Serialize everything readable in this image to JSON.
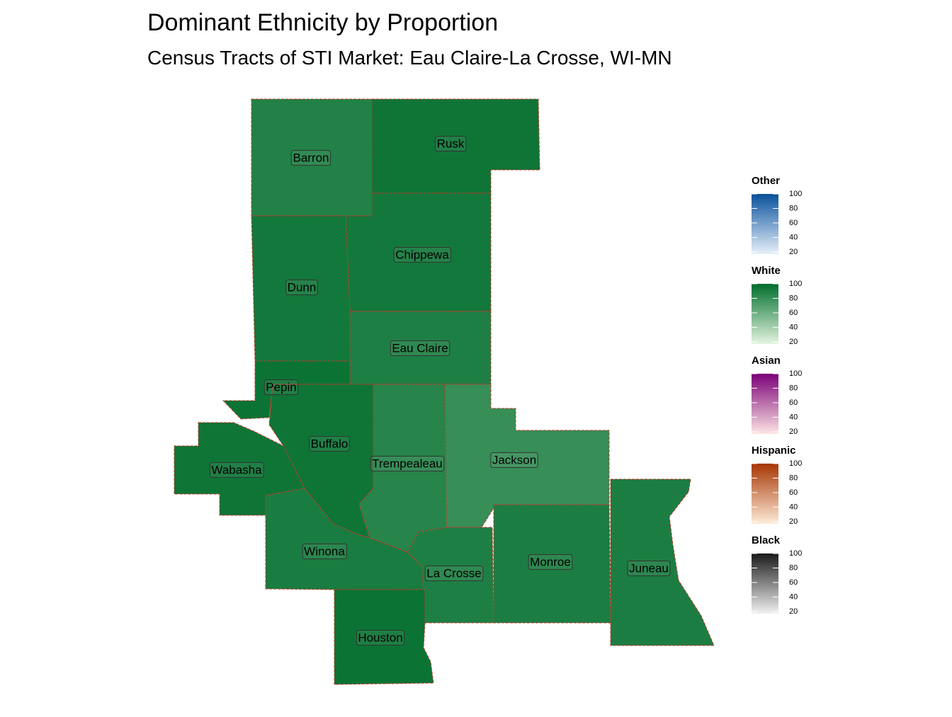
{
  "title": "Dominant Ethnicity by Proportion",
  "subtitle": "Census Tracts of STI Market: Eau Claire-La Crosse, WI-MN",
  "counties": [
    {
      "name": "Barron",
      "group": "White",
      "value": 88
    },
    {
      "name": "Rusk",
      "group": "White",
      "value": 95
    },
    {
      "name": "Chippewa",
      "group": "White",
      "value": 93
    },
    {
      "name": "Dunn",
      "group": "White",
      "value": 93
    },
    {
      "name": "Eau Claire",
      "group": "White",
      "value": 89
    },
    {
      "name": "Pepin",
      "group": "White",
      "value": 96
    },
    {
      "name": "Buffalo",
      "group": "White",
      "value": 95
    },
    {
      "name": "Wabasha",
      "group": "White",
      "value": 95
    },
    {
      "name": "Trempealeau",
      "group": "White",
      "value": 86
    },
    {
      "name": "Jackson",
      "group": "White",
      "value": 80
    },
    {
      "name": "Winona",
      "group": "White",
      "value": 91
    },
    {
      "name": "La Crosse",
      "group": "White",
      "value": 89
    },
    {
      "name": "Houston",
      "group": "White",
      "value": 96
    },
    {
      "name": "Monroe",
      "group": "White",
      "value": 90
    },
    {
      "name": "Juneau",
      "group": "White",
      "value": 90
    }
  ],
  "legend": [
    {
      "title": "Other",
      "low_color": "#e8f0fa",
      "high_color": "#08519c",
      "lim": [
        17,
        100
      ],
      "ticks": [
        20,
        40,
        60,
        80,
        100
      ]
    },
    {
      "title": "White",
      "low_color": "#e5f5e0",
      "high_color": "#006d2c",
      "lim": [
        17,
        100
      ],
      "ticks": [
        20,
        40,
        60,
        80,
        100
      ]
    },
    {
      "title": "Asian",
      "low_color": "#fde5e4",
      "high_color": "#7a0177",
      "lim": [
        17,
        100
      ],
      "ticks": [
        20,
        40,
        60,
        80,
        100
      ]
    },
    {
      "title": "Hispanic",
      "low_color": "#feebd8",
      "high_color": "#a63603",
      "lim": [
        17,
        100
      ],
      "ticks": [
        20,
        40,
        60,
        80,
        100
      ]
    },
    {
      "title": "Black",
      "low_color": "#f2f2f2",
      "high_color": "#1a1a1a",
      "lim": [
        17,
        100
      ],
      "ticks": [
        20,
        40,
        60,
        80,
        100
      ]
    }
  ]
}
